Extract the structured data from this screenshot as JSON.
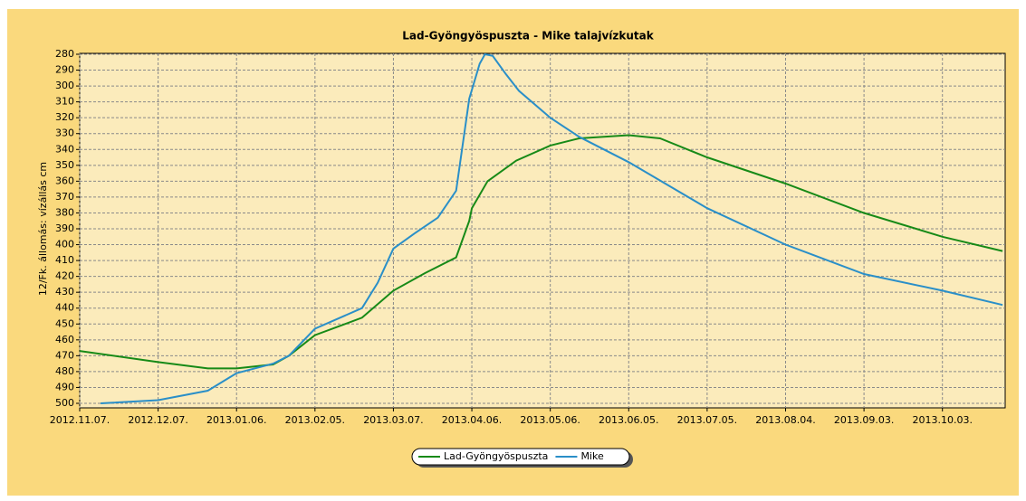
{
  "chart_data": {
    "type": "line",
    "title": "Lad-Gyöngyöspuszta - Mike talajvízkutak",
    "y_label": "12/Fk. állomás: vízállás cm",
    "ylim": [
      500,
      280
    ],
    "yticks": [
      280,
      290,
      300,
      310,
      320,
      330,
      340,
      350,
      360,
      370,
      380,
      390,
      400,
      410,
      420,
      430,
      440,
      450,
      460,
      470,
      480,
      490,
      500
    ],
    "xlim": [
      "2012-11-07",
      "2013-10-27"
    ],
    "xticks": [
      {
        "value": "2012-11-07",
        "label": "2012.11.07."
      },
      {
        "value": "2012-12-07",
        "label": "2012.12.07."
      },
      {
        "value": "2013-01-06",
        "label": "2013.01.06."
      },
      {
        "value": "2013-02-05",
        "label": "2013.02.05."
      },
      {
        "value": "2013-03-07",
        "label": "2013.03.07."
      },
      {
        "value": "2013-04-06",
        "label": "2013.04.06."
      },
      {
        "value": "2013-05-06",
        "label": "2013.05.06."
      },
      {
        "value": "2013-06-05",
        "label": "2013.06.05."
      },
      {
        "value": "2013-07-05",
        "label": "2013.07.05."
      },
      {
        "value": "2013-08-04",
        "label": "2013.08.04."
      },
      {
        "value": "2013-09-03",
        "label": "2013.09.03."
      },
      {
        "value": "2013-10-03",
        "label": "2013.10.03."
      }
    ],
    "grid": true,
    "legend": "bottom",
    "series": [
      {
        "name": "Lad-Gyöngyöspuszta",
        "color": "#178a17",
        "x": [
          "2012-11-07",
          "2012-12-07",
          "2012-12-26",
          "2013-01-06",
          "2013-01-20",
          "2013-01-26",
          "2013-02-05",
          "2013-02-23",
          "2013-03-07",
          "2013-03-19",
          "2013-03-31",
          "2013-04-05",
          "2013-04-06",
          "2013-04-12",
          "2013-04-23",
          "2013-05-06",
          "2013-05-17",
          "2013-06-05",
          "2013-06-17",
          "2013-07-05",
          "2013-08-04",
          "2013-09-03",
          "2013-10-03",
          "2013-10-26"
        ],
        "values": [
          467,
          474,
          478,
          478,
          475.5,
          470,
          457,
          446,
          429,
          418,
          408,
          385,
          377,
          360,
          347,
          337.5,
          333,
          331,
          333,
          345,
          361.5,
          380,
          395,
          404
        ]
      },
      {
        "name": "Mike",
        "color": "#2a8fc8",
        "x": [
          "2012-11-15",
          "2012-12-07",
          "2012-12-26",
          "2013-01-06",
          "2013-01-20",
          "2013-01-26",
          "2013-02-05",
          "2013-02-23",
          "2013-03-01",
          "2013-03-07",
          "2013-03-15",
          "2013-03-24",
          "2013-03-31",
          "2013-04-05",
          "2013-04-09",
          "2013-04-11",
          "2013-04-14",
          "2013-04-19",
          "2013-04-24",
          "2013-05-06",
          "2013-05-17",
          "2013-06-05",
          "2013-07-05",
          "2013-08-04",
          "2013-09-03",
          "2013-10-03",
          "2013-10-26"
        ],
        "values": [
          500,
          498,
          492,
          481,
          475,
          470,
          453,
          440,
          424,
          402.5,
          393,
          383,
          366,
          308,
          286,
          280,
          281,
          292.5,
          303,
          320,
          332,
          348,
          377,
          400,
          418.5,
          429,
          438
        ]
      }
    ]
  }
}
